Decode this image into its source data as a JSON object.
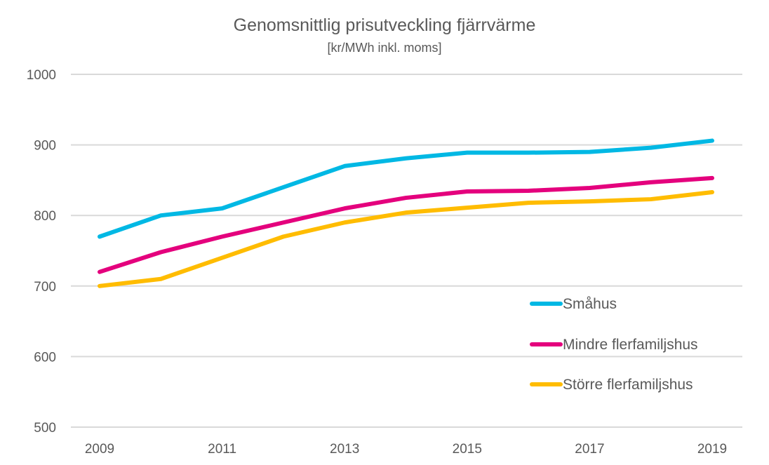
{
  "chart_data": {
    "type": "line",
    "title": "Genomsnittlig prisutveckling fjärrvärme",
    "subtitle": "[kr/MWh inkl. moms]",
    "xlabel": "",
    "ylabel": "",
    "x": [
      2009,
      2010,
      2011,
      2012,
      2013,
      2014,
      2015,
      2016,
      2017,
      2018,
      2019
    ],
    "xticks": [
      "2009",
      "2011",
      "2013",
      "2015",
      "2017",
      "2019"
    ],
    "yticks": [
      "500",
      "600",
      "700",
      "800",
      "900",
      "1000"
    ],
    "ylim": [
      500,
      1000
    ],
    "grid": true,
    "legend_position": "bottom-right",
    "series": [
      {
        "name": "Småhus",
        "color": "#00b8e4",
        "values": [
          770,
          800,
          810,
          840,
          870,
          881,
          889,
          889,
          890,
          896,
          906
        ]
      },
      {
        "name": "Mindre flerfamiljshus",
        "color": "#e4007d",
        "values": [
          720,
          748,
          770,
          790,
          810,
          825,
          834,
          835,
          839,
          847,
          853
        ]
      },
      {
        "name": "Större flerfamiljshus",
        "color": "#ffbc00",
        "values": [
          700,
          710,
          740,
          770,
          790,
          804,
          811,
          818,
          820,
          823,
          833
        ]
      }
    ]
  }
}
